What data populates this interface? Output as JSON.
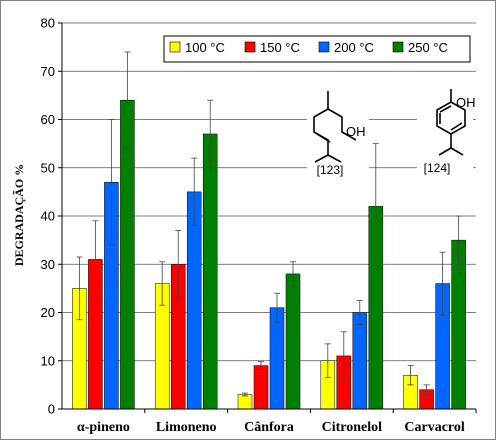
{
  "chart_data": {
    "type": "bar",
    "categories": [
      "α-pineno",
      "Limoneno",
      "Cânfora",
      "Citronelol",
      "Carvacrol"
    ],
    "ylabel": "DEGRADAÇÃO %",
    "ylim": [
      0,
      80
    ],
    "yticks": [
      0,
      10,
      20,
      30,
      40,
      50,
      60,
      70,
      80
    ],
    "grid": true,
    "legend_position": "top-right",
    "error_bars": true,
    "series": [
      {
        "name": "100 °C",
        "color": "#ffff00",
        "values": [
          25,
          26,
          3,
          10,
          7
        ],
        "errors": [
          6.5,
          4.5,
          0.3,
          3.5,
          2
        ]
      },
      {
        "name": "150 °C",
        "color": "#ff0000",
        "values": [
          31,
          30,
          9,
          11,
          4
        ],
        "errors": [
          8,
          7,
          0.8,
          5,
          1
        ]
      },
      {
        "name": "200 °C",
        "color": "#0066ff",
        "values": [
          47,
          45,
          21,
          20,
          26
        ],
        "errors": [
          13,
          7,
          3,
          2.5,
          6.5
        ]
      },
      {
        "name": "250 °C",
        "color": "#008000",
        "values": [
          64,
          57,
          28,
          42,
          35
        ],
        "errors": [
          10,
          7,
          2.5,
          13,
          5
        ]
      }
    ],
    "annotations": {
      "structure_left_ref": "[123]",
      "structure_right_ref": "[124]",
      "oh_label": "OH"
    }
  }
}
